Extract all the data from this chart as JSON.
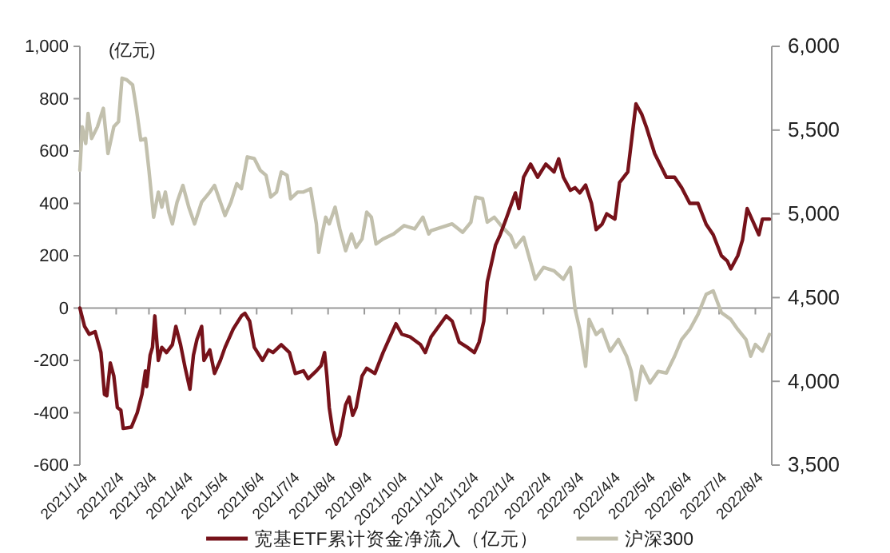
{
  "chart_data": {
    "type": "line",
    "ylabel": "(亿元)",
    "legend": "bottom",
    "xlim": [
      "2021-01-04",
      "2022-08-18"
    ],
    "xticks": [
      {
        "value": "2021-01-04",
        "label": "2021/1/4"
      },
      {
        "value": "2021-02-04",
        "label": "2021/2/4"
      },
      {
        "value": "2021-03-04",
        "label": "2021/3/4"
      },
      {
        "value": "2021-04-04",
        "label": "2021/4/4"
      },
      {
        "value": "2021-05-04",
        "label": "2021/5/4"
      },
      {
        "value": "2021-06-04",
        "label": "2021/6/4"
      },
      {
        "value": "2021-07-04",
        "label": "2021/7/4"
      },
      {
        "value": "2021-08-04",
        "label": "2021/8/4"
      },
      {
        "value": "2021-09-04",
        "label": "2021/9/4"
      },
      {
        "value": "2021-10-04",
        "label": "2021/10/4"
      },
      {
        "value": "2021-11-04",
        "label": "2021/11/4"
      },
      {
        "value": "2021-12-04",
        "label": "2021/12/4"
      },
      {
        "value": "2022-01-04",
        "label": "2022/1/4"
      },
      {
        "value": "2022-02-04",
        "label": "2022/2/4"
      },
      {
        "value": "2022-03-04",
        "label": "2022/3/4"
      },
      {
        "value": "2022-04-04",
        "label": "2022/4/4"
      },
      {
        "value": "2022-05-04",
        "label": "2022/5/4"
      },
      {
        "value": "2022-06-04",
        "label": "2022/6/4"
      },
      {
        "value": "2022-07-04",
        "label": "2022/7/4"
      },
      {
        "value": "2022-08-04",
        "label": "2022/8/4"
      }
    ],
    "ylim": [
      -600,
      1000
    ],
    "yticks": [
      {
        "value": -600,
        "label": "-600"
      },
      {
        "value": -400,
        "label": "-400"
      },
      {
        "value": -200,
        "label": "-200"
      },
      {
        "value": 0,
        "label": "0"
      },
      {
        "value": 200,
        "label": "200"
      },
      {
        "value": 400,
        "label": "400"
      },
      {
        "value": 600,
        "label": "600"
      },
      {
        "value": 800,
        "label": "800"
      },
      {
        "value": 1000,
        "label": "1,000"
      }
    ],
    "y2lim": [
      3500,
      6000
    ],
    "y2ticks": [
      {
        "value": 3500,
        "label": "3,500"
      },
      {
        "value": 4000,
        "label": "4,000"
      },
      {
        "value": 4500,
        "label": "4,500"
      },
      {
        "value": 5000,
        "label": "5,000"
      },
      {
        "value": 5500,
        "label": "5,500"
      },
      {
        "value": 6000,
        "label": "6,000"
      }
    ],
    "series": [
      {
        "name": "宽基ETF累计资金净流入（亿元）",
        "color": "#76121a",
        "axis": "y",
        "x": [
          "2021-01-04",
          "2021-01-08",
          "2021-01-12",
          "2021-01-17",
          "2021-01-22",
          "2021-01-25",
          "2021-01-27",
          "2021-01-30",
          "2021-02-02",
          "2021-02-05",
          "2021-02-08",
          "2021-02-10",
          "2021-02-17",
          "2021-02-22",
          "2021-02-26",
          "2021-03-01",
          "2021-03-02",
          "2021-03-05",
          "2021-03-07",
          "2021-03-09",
          "2021-03-12",
          "2021-03-15",
          "2021-03-19",
          "2021-03-24",
          "2021-03-27",
          "2021-03-31",
          "2021-04-04",
          "2021-04-08",
          "2021-04-11",
          "2021-04-14",
          "2021-04-18",
          "2021-04-20",
          "2021-04-25",
          "2021-04-29",
          "2021-05-04",
          "2021-05-08",
          "2021-05-15",
          "2021-05-22",
          "2021-05-25",
          "2021-05-29",
          "2021-06-02",
          "2021-06-09",
          "2021-06-14",
          "2021-06-18",
          "2021-06-25",
          "2021-07-02",
          "2021-07-07",
          "2021-07-14",
          "2021-07-18",
          "2021-07-25",
          "2021-07-29",
          "2021-08-01",
          "2021-08-03",
          "2021-08-05",
          "2021-08-08",
          "2021-08-11",
          "2021-08-14",
          "2021-08-19",
          "2021-08-22",
          "2021-08-25",
          "2021-08-28",
          "2021-09-02",
          "2021-09-06",
          "2021-09-13",
          "2021-09-20",
          "2021-09-27",
          "2021-10-01",
          "2021-10-06",
          "2021-10-13",
          "2021-10-22",
          "2021-10-26",
          "2021-10-31",
          "2021-11-13",
          "2021-11-18",
          "2021-11-24",
          "2021-12-01",
          "2021-12-07",
          "2021-12-11",
          "2021-12-14",
          "2021-12-15",
          "2021-12-18",
          "2021-12-20",
          "2021-12-25",
          "2021-12-29",
          "2022-01-03",
          "2022-01-11",
          "2022-01-14",
          "2022-01-18",
          "2022-01-24",
          "2022-01-30",
          "2022-02-06",
          "2022-02-13",
          "2022-02-17",
          "2022-02-21",
          "2022-02-27",
          "2022-03-03",
          "2022-03-07",
          "2022-03-12",
          "2022-03-17",
          "2022-03-21",
          "2022-03-26",
          "2022-03-30",
          "2022-04-06",
          "2022-04-10",
          "2022-04-17",
          "2022-04-24",
          "2022-04-29",
          "2022-05-03",
          "2022-05-10",
          "2022-05-20",
          "2022-05-27",
          "2022-06-02",
          "2022-06-09",
          "2022-06-16",
          "2022-06-23",
          "2022-06-29",
          "2022-07-06",
          "2022-07-11",
          "2022-07-14",
          "2022-07-20",
          "2022-07-24",
          "2022-07-28",
          "2022-08-03",
          "2022-08-07",
          "2022-08-10",
          "2022-08-16"
        ],
        "values": [
          0,
          -70,
          -100,
          -90,
          -170,
          -330,
          -335,
          -210,
          -260,
          -380,
          -390,
          -460,
          -455,
          -400,
          -330,
          -240,
          -300,
          -180,
          -150,
          -30,
          -200,
          -150,
          -170,
          -140,
          -70,
          -140,
          -230,
          -310,
          -180,
          -120,
          -70,
          -200,
          -160,
          -250,
          -200,
          -150,
          -80,
          -30,
          -20,
          -50,
          -150,
          -200,
          -160,
          -170,
          -140,
          -170,
          -250,
          -240,
          -270,
          -240,
          -220,
          -170,
          -260,
          -380,
          -470,
          -520,
          -490,
          -370,
          -340,
          -410,
          -380,
          -260,
          -230,
          -250,
          -170,
          -100,
          -60,
          -100,
          -110,
          -140,
          -170,
          -110,
          -30,
          -50,
          -130,
          -150,
          -170,
          -130,
          -70,
          -50,
          100,
          140,
          240,
          280,
          340,
          440,
          380,
          500,
          550,
          500,
          550,
          520,
          570,
          500,
          450,
          460,
          440,
          470,
          400,
          300,
          320,
          360,
          340,
          480,
          520,
          780,
          740,
          690,
          590,
          500,
          500,
          460,
          400,
          400,
          320,
          280,
          200,
          180,
          150,
          200,
          260,
          380,
          320,
          280,
          340,
          340
        ]
      },
      {
        "name": "沪深300",
        "color": "#c2c0ad",
        "axis": "y2",
        "x": [
          "2021-01-04",
          "2021-01-06",
          "2021-01-09",
          "2021-01-11",
          "2021-01-14",
          "2021-01-19",
          "2021-01-24",
          "2021-01-28",
          "2021-02-02",
          "2021-02-06",
          "2021-02-09",
          "2021-02-13",
          "2021-02-18",
          "2021-02-21",
          "2021-02-25",
          "2021-03-01",
          "2021-03-04",
          "2021-03-08",
          "2021-03-12",
          "2021-03-15",
          "2021-03-18",
          "2021-03-21",
          "2021-03-24",
          "2021-03-28",
          "2021-04-02",
          "2021-04-07",
          "2021-04-12",
          "2021-04-18",
          "2021-04-25",
          "2021-04-29",
          "2021-05-04",
          "2021-05-08",
          "2021-05-13",
          "2021-05-18",
          "2021-05-22",
          "2021-05-27",
          "2021-06-02",
          "2021-06-07",
          "2021-06-12",
          "2021-06-16",
          "2021-06-21",
          "2021-06-25",
          "2021-06-30",
          "2021-07-03",
          "2021-07-09",
          "2021-07-14",
          "2021-07-20",
          "2021-07-25",
          "2021-07-27",
          "2021-07-29",
          "2021-08-02",
          "2021-08-05",
          "2021-08-10",
          "2021-08-14",
          "2021-08-19",
          "2021-08-24",
          "2021-08-28",
          "2021-09-02",
          "2021-09-06",
          "2021-09-10",
          "2021-09-14",
          "2021-09-20",
          "2021-09-29",
          "2021-10-08",
          "2021-10-17",
          "2021-10-24",
          "2021-10-29",
          "2021-10-31",
          "2021-11-09",
          "2021-11-18",
          "2021-11-27",
          "2021-12-04",
          "2021-12-08",
          "2021-12-14",
          "2021-12-18",
          "2021-12-24",
          "2021-12-31",
          "2022-01-07",
          "2022-01-11",
          "2022-01-18",
          "2022-01-24",
          "2022-01-28",
          "2022-02-04",
          "2022-02-13",
          "2022-02-21",
          "2022-02-27",
          "2022-03-03",
          "2022-03-07",
          "2022-03-12",
          "2022-03-15",
          "2022-03-21",
          "2022-03-26",
          "2022-04-02",
          "2022-04-09",
          "2022-04-16",
          "2022-04-20",
          "2022-04-24",
          "2022-04-29",
          "2022-05-06",
          "2022-05-13",
          "2022-05-20",
          "2022-05-27",
          "2022-06-02",
          "2022-06-09",
          "2022-06-16",
          "2022-06-23",
          "2022-06-29",
          "2022-07-06",
          "2022-07-14",
          "2022-07-20",
          "2022-07-27",
          "2022-07-31",
          "2022-08-04",
          "2022-08-10",
          "2022-08-16"
        ],
        "values": [
          5260,
          5520,
          5420,
          5600,
          5450,
          5520,
          5630,
          5360,
          5520,
          5550,
          5810,
          5800,
          5770,
          5640,
          5440,
          5450,
          5260,
          4980,
          5130,
          5040,
          5130,
          5010,
          4940,
          5070,
          5170,
          5040,
          4940,
          5070,
          5130,
          5170,
          5070,
          4990,
          5070,
          5180,
          5150,
          5340,
          5330,
          5260,
          5230,
          5100,
          5130,
          5250,
          5230,
          5090,
          5130,
          5130,
          5150,
          4940,
          4770,
          4850,
          4980,
          4940,
          5040,
          4910,
          4780,
          4880,
          4800,
          4850,
          5010,
          4980,
          4820,
          4850,
          4880,
          4930,
          4910,
          4980,
          4880,
          4900,
          4920,
          4940,
          4890,
          4950,
          5100,
          5090,
          4950,
          4980,
          4920,
          4870,
          4800,
          4860,
          4710,
          4610,
          4680,
          4660,
          4610,
          4680,
          4430,
          4310,
          4090,
          4370,
          4280,
          4310,
          4180,
          4250,
          4150,
          4060,
          3890,
          4090,
          3990,
          4060,
          4050,
          4150,
          4250,
          4310,
          4400,
          4520,
          4540,
          4410,
          4370,
          4310,
          4250,
          4150,
          4220,
          4180,
          4280
        ]
      }
    ]
  }
}
